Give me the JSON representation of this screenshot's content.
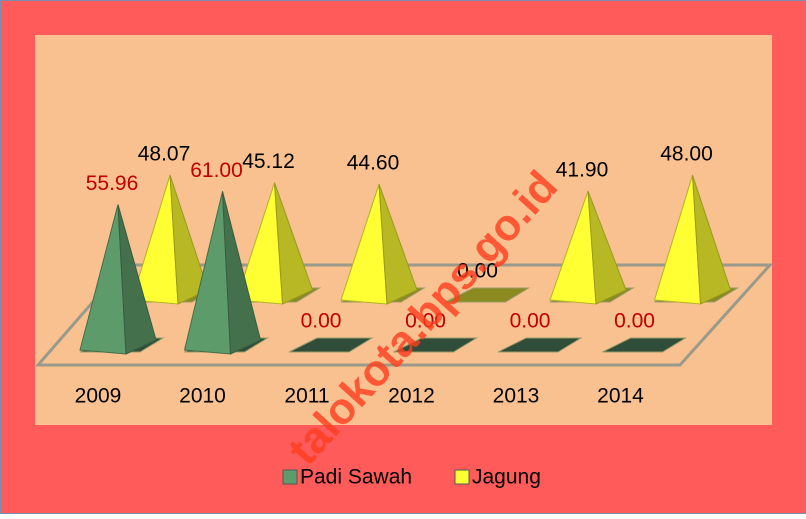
{
  "chart_data": {
    "type": "pyramid",
    "categories": [
      "2009",
      "2010",
      "2011",
      "2012",
      "2013",
      "2014"
    ],
    "series": [
      {
        "name": "Padi Sawah",
        "color": "#5e9b6a",
        "values": [
          55.96,
          61,
          0,
          0,
          0,
          0
        ],
        "value_labels": [
          "55.96",
          "61.00",
          "0.00",
          "0.00",
          "0.00",
          "0.00"
        ]
      },
      {
        "name": "Jagung",
        "color": "#ffff33",
        "values": [
          48.07,
          45.12,
          44.6,
          0,
          41.9,
          48
        ],
        "value_labels": [
          "48.07",
          "45.12",
          "44.60",
          "0.00",
          "41.90",
          "48.00"
        ]
      }
    ],
    "legend": "bottom",
    "watermark": "talokota.bps.go.id"
  }
}
